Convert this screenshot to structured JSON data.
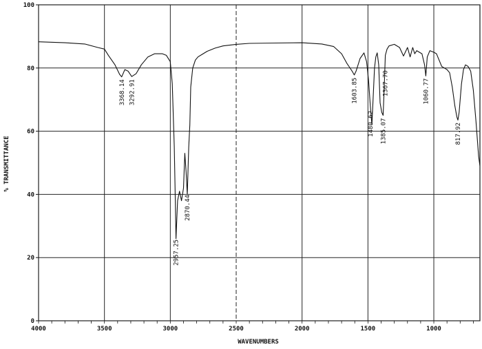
{
  "chart_data": {
    "type": "line",
    "title": "",
    "xlabel": "WAVENUMBERS",
    "ylabel": "% TRANSMITTANCE",
    "xlim": [
      4000,
      650
    ],
    "ylim": [
      0,
      100
    ],
    "x_ticks": [
      4000,
      3500,
      3000,
      2500,
      2000,
      1500,
      1000
    ],
    "x_tick_labels": [
      "4000",
      "3500",
      "3000",
      "2500",
      "2000",
      "1500",
      "1000"
    ],
    "y_ticks": [
      0,
      20,
      40,
      60,
      80,
      100
    ],
    "y_tick_labels": [
      "0",
      "20",
      "40",
      "60",
      "80",
      "100"
    ],
    "grid": true,
    "series": [
      {
        "x": [
          4000,
          3800,
          3650,
          3550,
          3500,
          3470,
          3420,
          3385,
          3369,
          3345,
          3320,
          3293,
          3260,
          3220,
          3170,
          3120,
          3060,
          3030,
          3000,
          2985,
          2970,
          2962,
          2957,
          2945,
          2930,
          2915,
          2900,
          2890,
          2880,
          2871,
          2860,
          2852,
          2845,
          2830,
          2810,
          2790,
          2760,
          2720,
          2660,
          2600,
          2500,
          2400,
          2200,
          2000,
          1850,
          1760,
          1700,
          1660,
          1620,
          1604,
          1590,
          1560,
          1530,
          1510,
          1495,
          1482,
          1470,
          1461,
          1450,
          1440,
          1430,
          1418,
          1408,
          1395,
          1385,
          1378,
          1368,
          1355,
          1340,
          1300,
          1260,
          1230,
          1200,
          1180,
          1160,
          1145,
          1130,
          1110,
          1090,
          1070,
          1061,
          1050,
          1030,
          1000,
          980,
          960,
          940,
          920,
          900,
          880,
          860,
          840,
          825,
          817,
          808,
          800,
          790,
          775,
          760,
          740,
          720,
          700,
          680,
          660,
          650
        ],
        "y": [
          88.3,
          88.0,
          87.6,
          86.5,
          86.0,
          84.0,
          81.0,
          78.0,
          77.2,
          79.5,
          79.0,
          77.3,
          78.2,
          81.0,
          83.5,
          84.5,
          84.5,
          84.0,
          82.0,
          75.0,
          55.0,
          38.0,
          26.0,
          38.0,
          41.0,
          38.0,
          42.0,
          53.0,
          47.0,
          40.0,
          55.0,
          62.0,
          74.0,
          80.0,
          82.5,
          83.5,
          84.3,
          85.3,
          86.3,
          87.0,
          87.5,
          87.8,
          87.9,
          88.0,
          87.6,
          86.8,
          84.5,
          81.5,
          79.0,
          77.8,
          79.0,
          83.0,
          84.8,
          82.0,
          76.0,
          68.0,
          62.0,
          70.0,
          80.0,
          83.5,
          84.8,
          81.0,
          69.0,
          66.0,
          65.0,
          72.0,
          84.0,
          86.0,
          87.0,
          87.5,
          86.5,
          83.8,
          86.5,
          83.5,
          86.5,
          84.5,
          85.5,
          85.0,
          84.5,
          81.0,
          77.5,
          83.5,
          85.5,
          85.0,
          84.5,
          82.5,
          80.5,
          80.0,
          79.5,
          78.5,
          74.0,
          68.0,
          64.5,
          63.5,
          66.0,
          70.0,
          75.0,
          79.5,
          81.0,
          80.5,
          79.0,
          73.0,
          63.0,
          52.0,
          49.0
        ]
      }
    ],
    "annotations": [
      "3368.14",
      "3292.91",
      "2957.25",
      "2870.44",
      "1603.85",
      "1480.62",
      "1385.07",
      "1367.70",
      "1060.77",
      "817.92"
    ]
  }
}
